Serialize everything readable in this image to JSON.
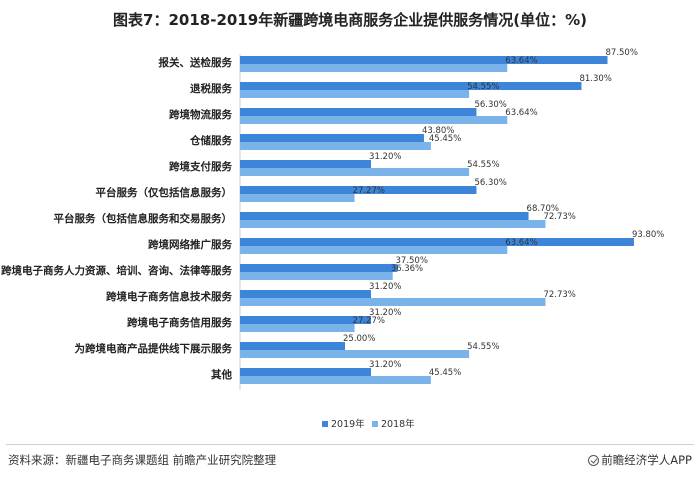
{
  "chart_data": {
    "type": "bar",
    "orientation": "horizontal",
    "title": "图表7：2018-2019年新疆跨境电商服务企业提供服务情况(单位：%)",
    "categories": [
      "报关、送检服务",
      "退税服务",
      "跨境物流服务",
      "仓储服务",
      "跨境支付服务",
      "平台服务（仅包括信息服务）",
      "平台服务（包括信息服务和交易服务）",
      "跨境网络推广服务",
      "跨境电子商务人力资源、培训、咨询、法律等服务",
      "跨境电子商务信息技术服务",
      "跨境电子商务信用服务",
      "为跨境电商产品提供线下展示服务",
      "其他"
    ],
    "series": [
      {
        "name": "2019年",
        "color": "#3d85d8",
        "values": [
          87.5,
          81.3,
          56.3,
          43.8,
          31.2,
          56.3,
          68.7,
          93.8,
          37.5,
          31.2,
          31.2,
          25.0,
          31.2
        ],
        "labels": [
          "87.50%",
          "81.30%",
          "56.30%",
          "43.80%",
          "31.20%",
          "56.30%",
          "68.70%",
          "93.80%",
          "37.50%",
          "31.20%",
          "31.20%",
          "25.00%",
          "31.20%"
        ]
      },
      {
        "name": "2018年",
        "color": "#7ab3ea",
        "values": [
          63.64,
          54.55,
          63.64,
          45.45,
          54.55,
          27.27,
          72.73,
          63.64,
          36.36,
          72.73,
          27.27,
          54.55,
          45.45
        ],
        "labels": [
          "63.64%",
          "54.55%",
          "63.64%",
          "45.45%",
          "54.55%",
          "27.27%",
          "72.73%",
          "63.64%",
          "36.36%",
          "72.73%",
          "27.27%",
          "54.55%",
          "45.45%"
        ]
      }
    ],
    "xlim": [
      0,
      100
    ],
    "grid": false,
    "legend_position": "bottom-center"
  },
  "footer": {
    "source": "资料来源：新疆电子商务课题组 前瞻产业研究院整理",
    "brand": "前瞻经济学人APP",
    "brand_icon": "check-circle-icon"
  }
}
